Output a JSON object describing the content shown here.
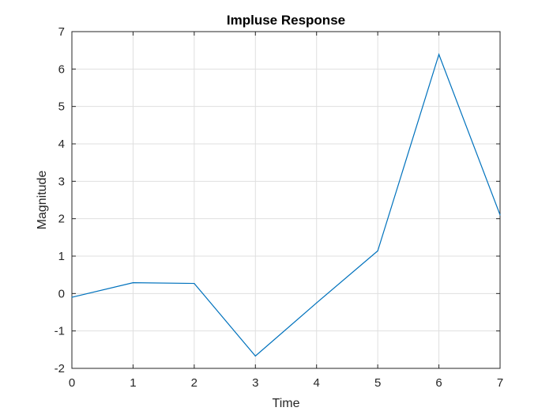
{
  "chart_data": {
    "type": "line",
    "title": "Impluse Response",
    "xlabel": "Time",
    "ylabel": "Magnitude",
    "xlim": [
      0,
      7
    ],
    "ylim": [
      -2,
      7
    ],
    "xticks": [
      "0",
      "1",
      "2",
      "3",
      "4",
      "5",
      "6",
      "7"
    ],
    "yticks": [
      "-2",
      "-1",
      "0",
      "1",
      "2",
      "3",
      "4",
      "5",
      "6",
      "7"
    ],
    "grid": true,
    "series_color": "#0072bd",
    "series": [
      {
        "x": [
          0,
          1,
          2,
          3,
          4,
          5,
          6,
          7
        ],
        "values": [
          -0.1,
          0.29,
          0.27,
          -1.67,
          -0.25,
          1.14,
          6.39,
          2.1
        ]
      }
    ]
  }
}
